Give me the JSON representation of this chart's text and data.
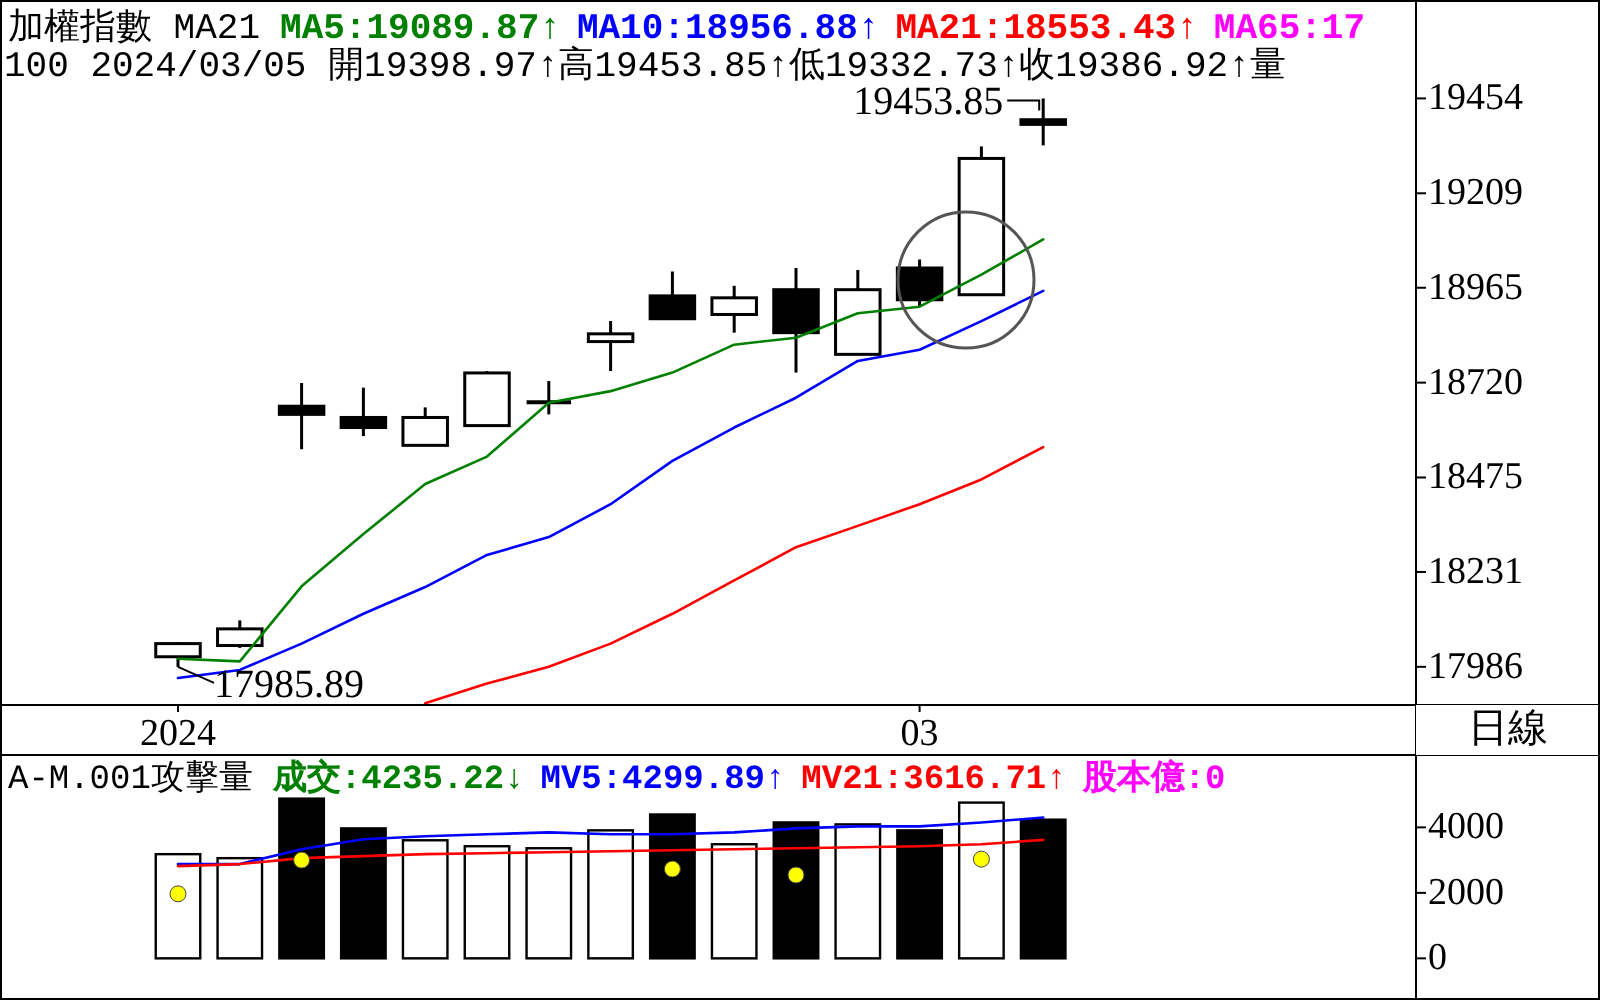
{
  "chart_data": [
    {
      "type": "candlestick",
      "title": "加權指數 MA21",
      "subtitle": "100 2024/03/05 開19398.97↑高19453.85↑低19332.73↑收19386.92↑量",
      "categories": [
        "2024",
        null,
        null,
        null,
        null,
        null,
        null,
        null,
        null,
        null,
        null,
        null,
        "03",
        null,
        null
      ],
      "ohlc": [
        [
          18012,
          18050,
          17985.89,
          18046
        ],
        [
          18041,
          18106,
          18035,
          18084
        ],
        [
          18659,
          18719,
          18548,
          18638
        ],
        [
          18630,
          18707,
          18582,
          18604
        ],
        [
          18558,
          18656,
          18558,
          18630
        ],
        [
          18609,
          18750,
          18609,
          18745
        ],
        [
          18672,
          18724,
          18638,
          18669
        ],
        [
          18826,
          18879,
          18750,
          18846
        ],
        [
          18944,
          19007,
          18885,
          18885
        ],
        [
          18896,
          18970,
          18849,
          18939
        ],
        [
          18960,
          19016,
          18746,
          18849
        ],
        [
          18793,
          19011,
          18793,
          18960
        ],
        [
          19016,
          19038,
          18916,
          18934
        ],
        [
          18947,
          19330,
          18947,
          19299
        ],
        [
          19398.97,
          19453.85,
          19332.73,
          19386.92
        ]
      ],
      "series": [
        {
          "name": "MA5:19089.87↑",
          "type": "line",
          "color": "#008000",
          "values": [
            18007,
            18000,
            18194,
            18329,
            18458,
            18529,
            18668,
            18698,
            18746,
            18818,
            18836,
            18899,
            18916,
            18999,
            19089.87
          ]
        },
        {
          "name": "MA10:18956.88↑",
          "type": "line",
          "color": "#0000ff",
          "values": [
            17957,
            17978,
            18046,
            18123,
            18192,
            18275,
            18321,
            18406,
            18518,
            18604,
            18681,
            18776,
            18805,
            18879,
            18956.88
          ]
        },
        {
          "name": "MA21:18553.43↑",
          "type": "line",
          "color": "#ff0000",
          "values": [
            null,
            null,
            null,
            null,
            17892,
            17943,
            17986,
            18046,
            18123,
            18209,
            18295,
            18350,
            18406,
            18470,
            18553.43
          ]
        },
        {
          "name": "MA65:17",
          "type": "line",
          "color": "#ff00ff",
          "values": [
            null,
            null,
            null,
            null,
            null,
            null,
            null,
            null,
            null,
            null,
            null,
            null,
            null,
            null,
            null
          ]
        }
      ],
      "ylim": [
        17890,
        19703
      ],
      "yticks": [
        17986,
        18231,
        18475,
        18720,
        18965,
        19209,
        19454
      ],
      "legend": "top right",
      "annotations": [
        "19453.85",
        "17985.89",
        "日線"
      ]
    },
    {
      "type": "bar",
      "title": "A-M.001攻擊量",
      "categories": [
        null,
        null,
        null,
        null,
        null,
        null,
        null,
        null,
        null,
        null,
        null,
        null,
        null,
        null,
        null
      ],
      "tick_labels": "y",
      "series": [
        {
          "name": "成交:4235.22↓",
          "color": "#008000",
          "colors": [
            "#ffffff",
            "#ffffff",
            "#000000",
            "#000000",
            "#ffffff",
            "#ffffff",
            "#ffffff",
            "#ffffff",
            "#000000",
            "#ffffff",
            "#000000",
            "#ffffff",
            "#000000",
            "#ffffff",
            "#000000"
          ],
          "values": [
            3182,
            3060,
            4878,
            3969,
            3606,
            3424,
            3363,
            3909,
            4394,
            3485,
            4151,
            4091,
            3909,
            4757,
            4235.22
          ]
        },
        {
          "name": "MV5:4299.89↑",
          "type": "line",
          "color": "#0000ff",
          "values": [
            2879,
            2879,
            3333,
            3636,
            3727,
            3788,
            3848,
            3788,
            3788,
            3848,
            3969,
            4030,
            4030,
            4151,
            4299.89
          ]
        },
        {
          "name": "MV21:3616.71↑",
          "type": "line",
          "color": "#ff0000",
          "values": [
            2818,
            2879,
            3060,
            3121,
            3182,
            3212,
            3242,
            3273,
            3303,
            3333,
            3363,
            3394,
            3424,
            3485,
            3616.71
          ]
        },
        {
          "name": "股本億:0",
          "type": "line",
          "color": "#ff00ff",
          "values": [
            null,
            null,
            null,
            null,
            null,
            null,
            null,
            null,
            null,
            null,
            null,
            null,
            null,
            null,
            null
          ]
        },
        {
          "type": "scatter",
          "color": "#ffff00",
          "values": [
            1970,
            null,
            3000,
            null,
            null,
            null,
            null,
            null,
            2727,
            null,
            2545,
            null,
            null,
            3030,
            null
          ]
        }
      ],
      "ylim": [
        -1150,
        6180
      ],
      "yticks": [
        0,
        2000,
        4000
      ],
      "legend": "top right"
    }
  ]
}
